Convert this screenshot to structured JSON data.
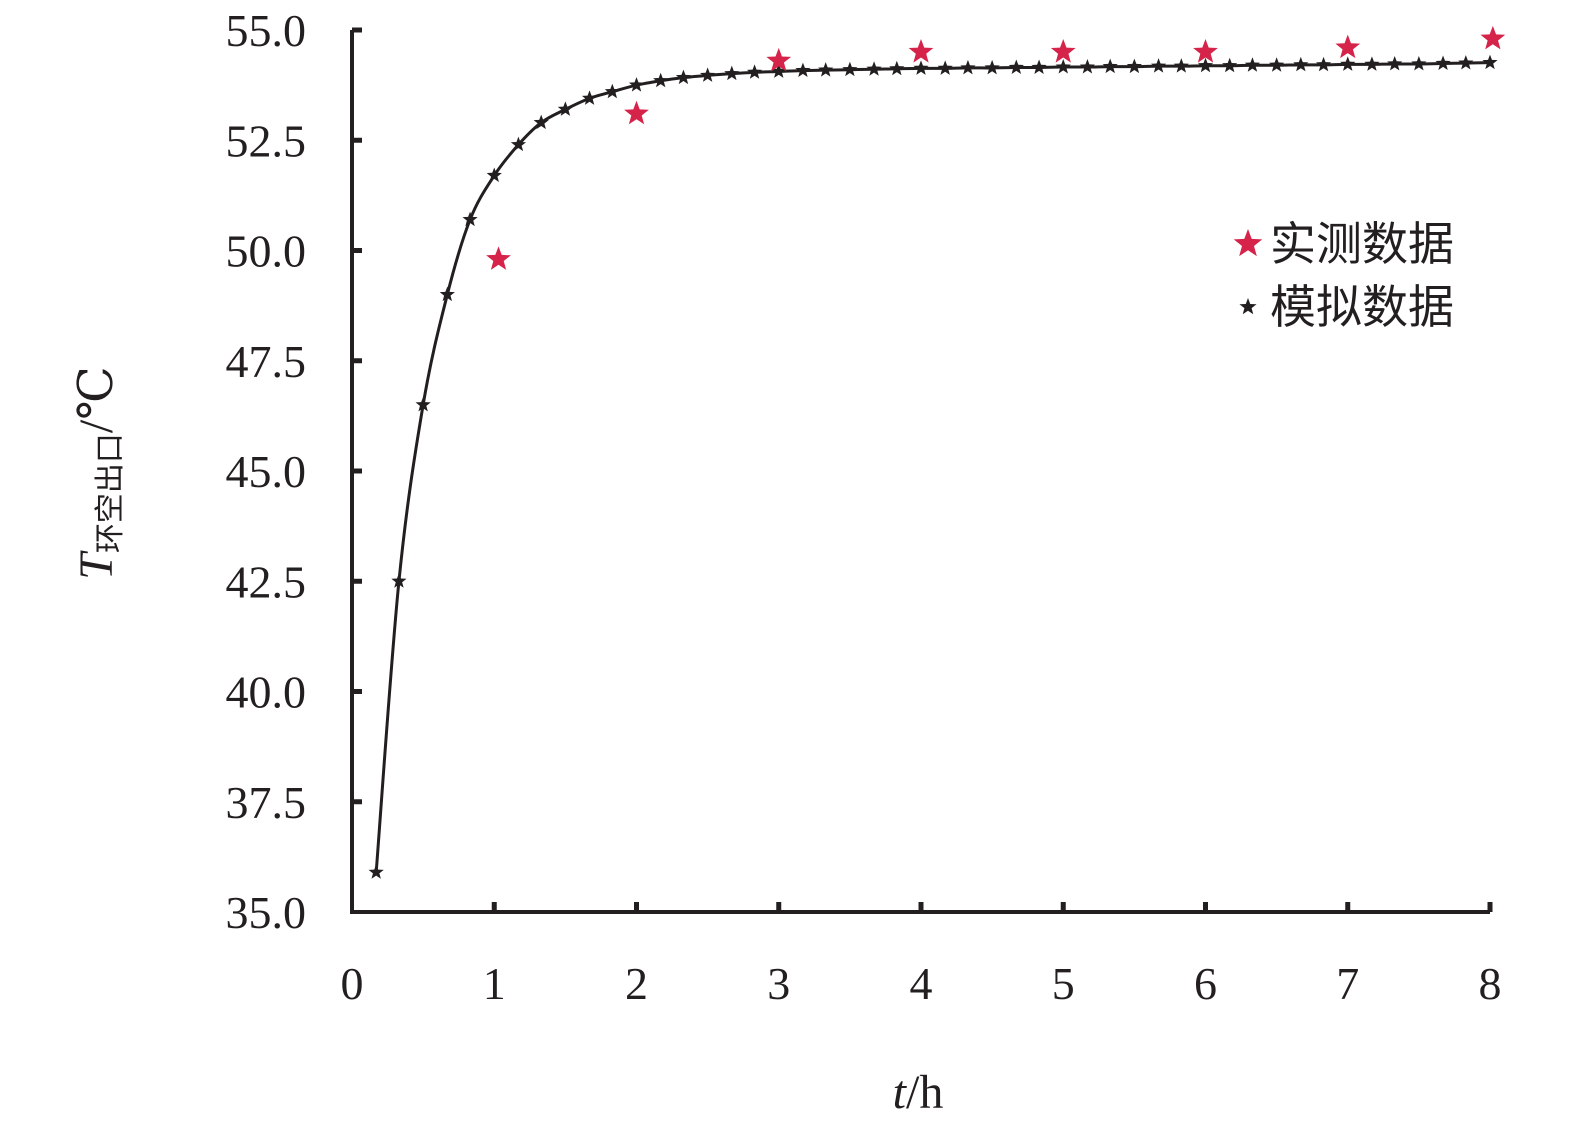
{
  "chart_data": {
    "type": "line",
    "xlabel": {
      "var": "t",
      "unit": "/h"
    },
    "ylabel": {
      "var": "T",
      "sub": "环空出口",
      "unit": "/℃"
    },
    "xlim": [
      0,
      8
    ],
    "ylim": [
      35,
      55
    ],
    "x_ticks": [
      0,
      1,
      2,
      3,
      4,
      5,
      6,
      7,
      8
    ],
    "x_tick_labels": [
      "0",
      "1",
      "2",
      "3",
      "4",
      "5",
      "6",
      "7",
      "8"
    ],
    "y_ticks": [
      35,
      37.5,
      40,
      42.5,
      45,
      47.5,
      50,
      52.5,
      55
    ],
    "y_tick_labels": [
      "35.0",
      "37.5",
      "40.0",
      "42.5",
      "45.0",
      "47.5",
      "50.0",
      "52.5",
      "55.0"
    ],
    "grid": false,
    "legend_position": "right",
    "series": [
      {
        "name": "实测数据",
        "style": "markers",
        "marker": "star",
        "color": "#d6234a",
        "x": [
          1.03,
          2.0,
          3.0,
          4.0,
          5.0,
          6.0,
          7.0,
          8.02
        ],
        "y": [
          49.8,
          53.1,
          54.3,
          54.5,
          54.5,
          54.5,
          54.6,
          54.8
        ]
      },
      {
        "name": "模拟数据",
        "style": "line-markers",
        "marker": "star",
        "color": "#231f20",
        "x": [
          0.17,
          0.33,
          0.5,
          0.67,
          0.83,
          1.0,
          1.17,
          1.33,
          1.5,
          1.67,
          1.83,
          2.0,
          2.17,
          2.33,
          2.5,
          2.67,
          2.83,
          3.0,
          3.17,
          3.33,
          3.5,
          3.67,
          3.83,
          4.0,
          4.17,
          4.33,
          4.5,
          4.67,
          4.83,
          5.0,
          5.17,
          5.33,
          5.5,
          5.67,
          5.83,
          6.0,
          6.17,
          6.33,
          6.5,
          6.67,
          6.83,
          7.0,
          7.17,
          7.33,
          7.5,
          7.67,
          7.83,
          8.0
        ],
        "y": [
          35.9,
          42.5,
          46.5,
          49.0,
          50.7,
          51.7,
          52.4,
          52.9,
          53.2,
          53.45,
          53.6,
          53.75,
          53.85,
          53.92,
          53.97,
          54.01,
          54.04,
          54.06,
          54.08,
          54.09,
          54.1,
          54.11,
          54.12,
          54.13,
          54.13,
          54.14,
          54.14,
          54.15,
          54.15,
          54.16,
          54.16,
          54.17,
          54.17,
          54.18,
          54.18,
          54.19,
          54.19,
          54.2,
          54.2,
          54.21,
          54.21,
          54.22,
          54.22,
          54.23,
          54.23,
          54.24,
          54.25,
          54.26
        ]
      }
    ]
  }
}
